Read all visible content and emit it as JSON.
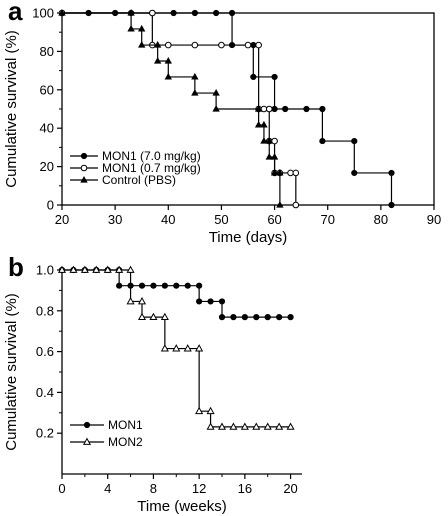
{
  "chart_data": [
    {
      "panel": "a",
      "type": "line",
      "xlabel": "Time (days)",
      "ylabel": "Cumulative survival (%)",
      "xlim": [
        20,
        90
      ],
      "ylim": [
        0,
        100
      ],
      "x_ticks": [
        "20",
        "30",
        "40",
        "50",
        "60",
        "70",
        "80",
        "90"
      ],
      "y_ticks": [
        "0",
        "20",
        "40",
        "60",
        "80",
        "100"
      ],
      "legend_position": "bottom-left",
      "series": [
        {
          "name": "MON1 (7.0 mg/kg)",
          "marker": "filled-circle",
          "points": [
            [
              20,
              100
            ],
            [
              25,
              100
            ],
            [
              30,
              100
            ],
            [
              33,
              100
            ],
            [
              37,
              100
            ],
            [
              41,
              100
            ],
            [
              45,
              100
            ],
            [
              49,
              100
            ],
            [
              52,
              100
            ],
            [
              52,
              83.3
            ],
            [
              56,
              83.3
            ],
            [
              56,
              66.7
            ],
            [
              60,
              66.7
            ],
            [
              60,
              50
            ],
            [
              62,
              50
            ],
            [
              66,
              50
            ],
            [
              69,
              50
            ],
            [
              69,
              33.3
            ],
            [
              75,
              33.3
            ],
            [
              75,
              16.7
            ],
            [
              82,
              16.7
            ],
            [
              82,
              0
            ]
          ]
        },
        {
          "name": "MON1 (0.7 mg/kg)",
          "marker": "open-circle",
          "points": [
            [
              20,
              100
            ],
            [
              37,
              100
            ],
            [
              37,
              83.3
            ],
            [
              40,
              83.3
            ],
            [
              45,
              83.3
            ],
            [
              50,
              83.3
            ],
            [
              55,
              83.3
            ],
            [
              57,
              83.3
            ],
            [
              57,
              50
            ],
            [
              58,
              50
            ],
            [
              59,
              50
            ],
            [
              59,
              33.3
            ],
            [
              60,
              33.3
            ],
            [
              60,
              16.7
            ],
            [
              61,
              16.7
            ],
            [
              63,
              16.7
            ],
            [
              64,
              16.7
            ],
            [
              64,
              0
            ]
          ]
        },
        {
          "name": "Control (PBS)",
          "marker": "filled-triangle",
          "points": [
            [
              20,
              100
            ],
            [
              33,
              100
            ],
            [
              33,
              91.7
            ],
            [
              35,
              91.7
            ],
            [
              35,
              83.3
            ],
            [
              38,
              83.3
            ],
            [
              38,
              75
            ],
            [
              40,
              75
            ],
            [
              40,
              66.7
            ],
            [
              45,
              66.7
            ],
            [
              45,
              58.3
            ],
            [
              49,
              58.3
            ],
            [
              49,
              50
            ],
            [
              57,
              50
            ],
            [
              57,
              41.7
            ],
            [
              58,
              41.7
            ],
            [
              58,
              33.3
            ],
            [
              59,
              33.3
            ],
            [
              59,
              25
            ],
            [
              60,
              25
            ],
            [
              60,
              16.7
            ],
            [
              61,
              16.7
            ],
            [
              61,
              0
            ]
          ]
        }
      ]
    },
    {
      "panel": "b",
      "type": "line",
      "xlabel": "Time (weeks)",
      "ylabel": "Cumulative survival (%)",
      "xlim": [
        0,
        21
      ],
      "ylim": [
        0,
        1.0
      ],
      "x_ticks": [
        "0",
        "4",
        "8",
        "12",
        "16",
        "20"
      ],
      "y_ticks": [
        "0.2",
        "0.4",
        "0.6",
        "0.8",
        "1.0"
      ],
      "legend_position": "bottom-left",
      "series": [
        {
          "name": "MON1",
          "marker": "filled-circle",
          "points": [
            [
              0,
              1.0
            ],
            [
              1,
              1.0
            ],
            [
              2,
              1.0
            ],
            [
              3,
              1.0
            ],
            [
              4,
              1.0
            ],
            [
              5,
              1.0
            ],
            [
              5,
              0.923
            ],
            [
              6,
              0.923
            ],
            [
              7,
              0.923
            ],
            [
              8,
              0.923
            ],
            [
              9,
              0.923
            ],
            [
              10,
              0.923
            ],
            [
              11,
              0.923
            ],
            [
              12,
              0.923
            ],
            [
              12,
              0.846
            ],
            [
              13,
              0.846
            ],
            [
              14,
              0.846
            ],
            [
              14,
              0.769
            ],
            [
              15,
              0.769
            ],
            [
              16,
              0.769
            ],
            [
              17,
              0.769
            ],
            [
              18,
              0.769
            ],
            [
              19,
              0.769
            ],
            [
              20,
              0.769
            ]
          ]
        },
        {
          "name": "MON2",
          "marker": "open-triangle",
          "points": [
            [
              0,
              1.0
            ],
            [
              1,
              1.0
            ],
            [
              2,
              1.0
            ],
            [
              3,
              1.0
            ],
            [
              4,
              1.0
            ],
            [
              5,
              1.0
            ],
            [
              6,
              1.0
            ],
            [
              6,
              0.846
            ],
            [
              7,
              0.846
            ],
            [
              7,
              0.769
            ],
            [
              8,
              0.769
            ],
            [
              9,
              0.769
            ],
            [
              9,
              0.615
            ],
            [
              10,
              0.615
            ],
            [
              11,
              0.615
            ],
            [
              12,
              0.615
            ],
            [
              12,
              0.308
            ],
            [
              13,
              0.308
            ],
            [
              13,
              0.231
            ],
            [
              14,
              0.231
            ],
            [
              15,
              0.231
            ],
            [
              16,
              0.231
            ],
            [
              17,
              0.231
            ],
            [
              18,
              0.231
            ],
            [
              19,
              0.231
            ],
            [
              20,
              0.231
            ]
          ]
        }
      ]
    }
  ]
}
